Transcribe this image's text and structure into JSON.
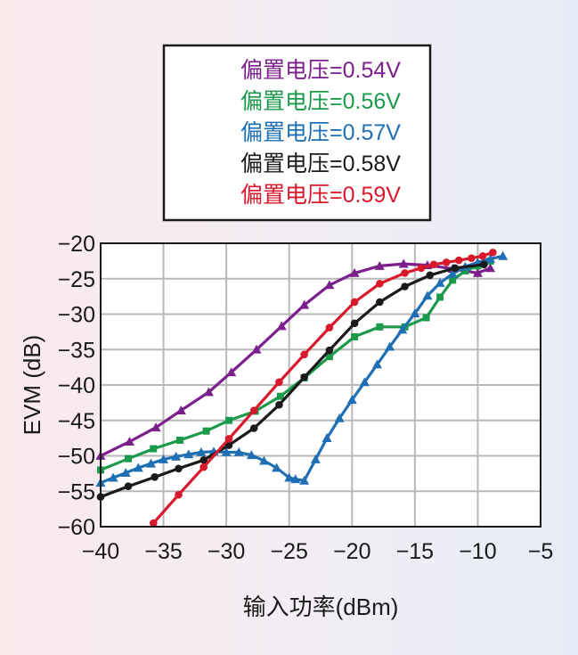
{
  "chart_data": {
    "type": "line",
    "xlabel": "输入功率(dBm)",
    "ylabel": "EVM (dB)",
    "xlim": [
      -40,
      -5
    ],
    "ylim": [
      -60,
      -20
    ],
    "xticks": [
      -40,
      -35,
      -30,
      -25,
      -20,
      -15,
      -10,
      -5
    ],
    "yticks": [
      -60,
      -55,
      -50,
      -45,
      -40,
      -35,
      -30,
      -25,
      -20
    ],
    "xtick_labels": [
      "−40",
      "−35",
      "−30",
      "−25",
      "−20",
      "−15",
      "−10",
      "−5"
    ],
    "ytick_labels": [
      "−60",
      "−55",
      "−50",
      "−45",
      "−40",
      "−35",
      "−30",
      "−25",
      "−20"
    ],
    "grid": true,
    "legend_position": "top (above plot)",
    "series": [
      {
        "name": "偏置电压=0.54V",
        "color": "#7b1f8c",
        "marker": "triangle",
        "x": [
          -40,
          -37.7,
          -35.6,
          -33.6,
          -31.4,
          -29.6,
          -27.6,
          -25.6,
          -23.8,
          -21.8,
          -19.8,
          -17.8,
          -15.9,
          -14,
          -12,
          -10,
          -9
        ],
        "y": [
          -50,
          -48,
          -46,
          -43.6,
          -41,
          -38.2,
          -35,
          -31.7,
          -28.7,
          -25.9,
          -24.2,
          -23.2,
          -22.9,
          -23.1,
          -23.6,
          -24.2,
          -23.5
        ]
      },
      {
        "name": "偏置电压=0.56V",
        "color": "#1a9a4a",
        "marker": "square",
        "x": [
          -40,
          -37.8,
          -35.8,
          -33.7,
          -31.6,
          -29.8,
          -27.7,
          -25.7,
          -23.8,
          -21.8,
          -19.8,
          -17.8,
          -15.8,
          -14.1,
          -13,
          -12,
          -11,
          -10,
          -9
        ],
        "y": [
          -52,
          -50.4,
          -49,
          -47.8,
          -46.5,
          -45,
          -43.7,
          -41.6,
          -39,
          -36,
          -33.2,
          -31.8,
          -31.8,
          -30.5,
          -27.6,
          -25.2,
          -23.9,
          -23.2,
          -22.5
        ]
      },
      {
        "name": "偏置电压=0.57V",
        "color": "#1f6fb5",
        "marker": "triangle",
        "x": [
          -40,
          -39,
          -38,
          -37,
          -36,
          -35,
          -34,
          -33,
          -32,
          -31,
          -30,
          -29,
          -28,
          -27,
          -26,
          -25,
          -24.5,
          -23.8,
          -22.9,
          -22,
          -21,
          -20,
          -19,
          -18,
          -17,
          -16,
          -15,
          -14,
          -13,
          -12,
          -11,
          -10,
          -9,
          -8
        ],
        "y": [
          -53.8,
          -53.1,
          -52.4,
          -51.7,
          -51.1,
          -50.5,
          -50.1,
          -49.8,
          -49.5,
          -49.4,
          -49.5,
          -49.5,
          -49.9,
          -50.7,
          -51.7,
          -53.1,
          -53.3,
          -53.5,
          -50.5,
          -47.5,
          -44.7,
          -42.1,
          -39.6,
          -37.1,
          -34.6,
          -32.2,
          -29.9,
          -27.4,
          -25.6,
          -24.3,
          -23.3,
          -22.7,
          -22.2,
          -21.8
        ]
      },
      {
        "name": "偏置电压=0.58V",
        "color": "#1a1a1a",
        "marker": "circle",
        "x": [
          -40,
          -37.8,
          -35.7,
          -33.8,
          -31.8,
          -29.8,
          -27.8,
          -25.8,
          -23.8,
          -21.8,
          -19.8,
          -17.8,
          -15.8,
          -13.8,
          -11.8,
          -9.5
        ],
        "y": [
          -55.8,
          -54.3,
          -53,
          -51.8,
          -50.6,
          -48.5,
          -46.1,
          -42.8,
          -38.9,
          -35.1,
          -31.3,
          -28.3,
          -26.1,
          -24.5,
          -23.5,
          -23
        ]
      },
      {
        "name": "偏置电压=0.59V",
        "color": "#d8192b",
        "marker": "circle",
        "x": [
          -35.8,
          -33.8,
          -31.8,
          -29.8,
          -27.8,
          -25.8,
          -23.8,
          -21.8,
          -19.8,
          -17.8,
          -15.8,
          -14.5,
          -13.5,
          -12.5,
          -11.5,
          -10.5,
          -9.6,
          -8.8
        ],
        "y": [
          -59.5,
          -55.5,
          -51.6,
          -47.6,
          -43.6,
          -39.6,
          -35.7,
          -31.9,
          -28.3,
          -25.7,
          -24.2,
          -23.5,
          -23,
          -22.7,
          -22.4,
          -22.1,
          -21.8,
          -21.3
        ]
      }
    ]
  }
}
